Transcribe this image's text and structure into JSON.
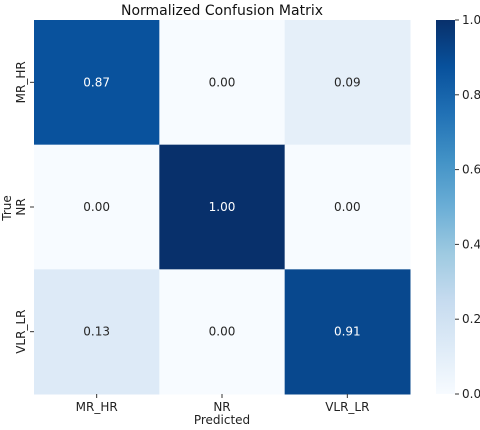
{
  "chart_data": {
    "type": "heatmap",
    "title": "Normalized Confusion Matrix",
    "xlabel": "Predicted",
    "ylabel": "True",
    "x_categories": [
      "MR_HR",
      "NR",
      "VLR_LR"
    ],
    "y_categories": [
      "MR_HR",
      "NR",
      "VLR_LR"
    ],
    "values": [
      [
        0.87,
        0.0,
        0.09
      ],
      [
        0.0,
        1.0,
        0.0
      ],
      [
        0.13,
        0.0,
        0.91
      ]
    ],
    "annotations": [
      [
        "0.87",
        "0.00",
        "0.09"
      ],
      [
        "0.00",
        "1.00",
        "0.00"
      ],
      [
        "0.13",
        "0.00",
        "0.91"
      ]
    ],
    "colorbar": {
      "vmin": 0,
      "vmax": 1,
      "ticks": [
        "0.0",
        "0.2",
        "0.4",
        "0.6",
        "0.8",
        "1.0"
      ],
      "colormap": "Blues"
    },
    "grid": false
  }
}
